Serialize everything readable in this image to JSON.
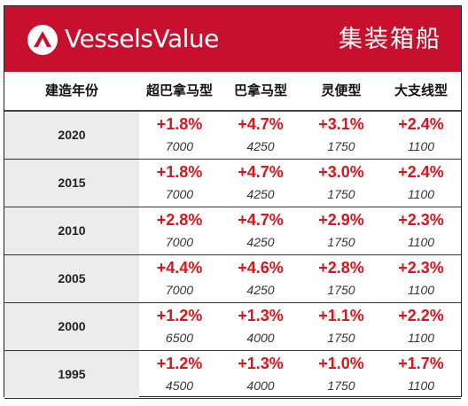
{
  "header": {
    "brand": "VesselsValue",
    "title": "集装箱船",
    "accent_color": "#c8102e",
    "logo_icon": "vesselsvalue-logo-icon"
  },
  "table": {
    "columns": [
      "建造年份",
      "超巴拿马型",
      "巴拿马型",
      "灵便型",
      "大支线型"
    ],
    "rows": [
      {
        "year": "2020",
        "cells": [
          {
            "pct": "+1.8%",
            "val": "7000"
          },
          {
            "pct": "+4.7%",
            "val": "4250"
          },
          {
            "pct": "+3.1%",
            "val": "1750"
          },
          {
            "pct": "+2.4%",
            "val": "1100"
          }
        ]
      },
      {
        "year": "2015",
        "cells": [
          {
            "pct": "+1.8%",
            "val": "7000"
          },
          {
            "pct": "+4.7%",
            "val": "4250"
          },
          {
            "pct": "+3.0%",
            "val": "1750"
          },
          {
            "pct": "+2.4%",
            "val": "1100"
          }
        ]
      },
      {
        "year": "2010",
        "cells": [
          {
            "pct": "+2.8%",
            "val": "7000"
          },
          {
            "pct": "+4.7%",
            "val": "4250"
          },
          {
            "pct": "+2.9%",
            "val": "1750"
          },
          {
            "pct": "+2.3%",
            "val": "1100"
          }
        ]
      },
      {
        "year": "2005",
        "cells": [
          {
            "pct": "+4.4%",
            "val": "7000"
          },
          {
            "pct": "+4.6%",
            "val": "4250"
          },
          {
            "pct": "+2.8%",
            "val": "1750"
          },
          {
            "pct": "+2.3%",
            "val": "1100"
          }
        ]
      },
      {
        "year": "2000",
        "cells": [
          {
            "pct": "+1.2%",
            "val": "6500"
          },
          {
            "pct": "+1.3%",
            "val": "4000"
          },
          {
            "pct": "+1.1%",
            "val": "1750"
          },
          {
            "pct": "+2.2%",
            "val": "1100"
          }
        ]
      },
      {
        "year": "1995",
        "cells": [
          {
            "pct": "+1.2%",
            "val": "4500"
          },
          {
            "pct": "+1.3%",
            "val": "4000"
          },
          {
            "pct": "+1.0%",
            "val": "1750"
          },
          {
            "pct": "+1.7%",
            "val": "1100"
          }
        ]
      }
    ]
  }
}
